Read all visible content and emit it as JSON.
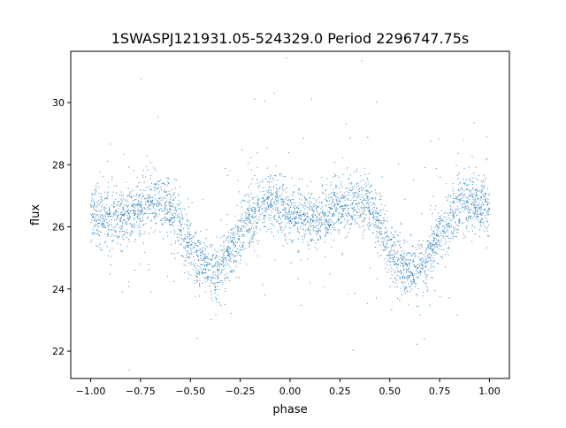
{
  "chart_data": {
    "type": "scatter",
    "title": "1SWASPJ121931.05-524329.0 Period 2296747.75s",
    "xlabel": "phase",
    "ylabel": "flux",
    "xlim": [
      -1.1,
      1.1
    ],
    "ylim": [
      21.12,
      31.65
    ],
    "xticks": [
      -1.0,
      -0.75,
      -0.5,
      -0.25,
      0.0,
      0.25,
      0.5,
      0.75,
      1.0
    ],
    "xtick_labels": [
      "−1.00",
      "−0.75",
      "−0.50",
      "−0.25",
      "0.00",
      "0.25",
      "0.50",
      "0.75",
      "1.00"
    ],
    "yticks": [
      22,
      24,
      26,
      28,
      30
    ],
    "ytick_labels": [
      "22",
      "24",
      "26",
      "28",
      "30"
    ],
    "grid": false,
    "point_color": "#1f77b4",
    "binned_mean_flux": {
      "phase": [
        -1.0,
        -0.95,
        -0.9,
        -0.85,
        -0.8,
        -0.75,
        -0.7,
        -0.65,
        -0.6,
        -0.55,
        -0.5,
        -0.45,
        -0.4,
        -0.35,
        -0.3,
        -0.25,
        -0.2,
        -0.15,
        -0.1,
        -0.05,
        0.0,
        0.05,
        0.1,
        0.15,
        0.2,
        0.25,
        0.3,
        0.35,
        0.4,
        0.45,
        0.5,
        0.55,
        0.6,
        0.65,
        0.7,
        0.75,
        0.8,
        0.85,
        0.9,
        0.95,
        1.0
      ],
      "flux": [
        26.4,
        26.3,
        26.2,
        26.2,
        26.4,
        26.6,
        26.8,
        26.8,
        26.6,
        26.1,
        25.3,
        24.8,
        24.6,
        24.6,
        25.1,
        25.8,
        26.3,
        26.6,
        26.8,
        26.7,
        26.5,
        26.3,
        26.2,
        26.2,
        26.4,
        26.6,
        26.8,
        26.8,
        26.6,
        26.1,
        25.3,
        24.8,
        24.6,
        24.6,
        25.1,
        25.8,
        26.3,
        26.6,
        26.8,
        26.7,
        26.5
      ]
    }
  }
}
